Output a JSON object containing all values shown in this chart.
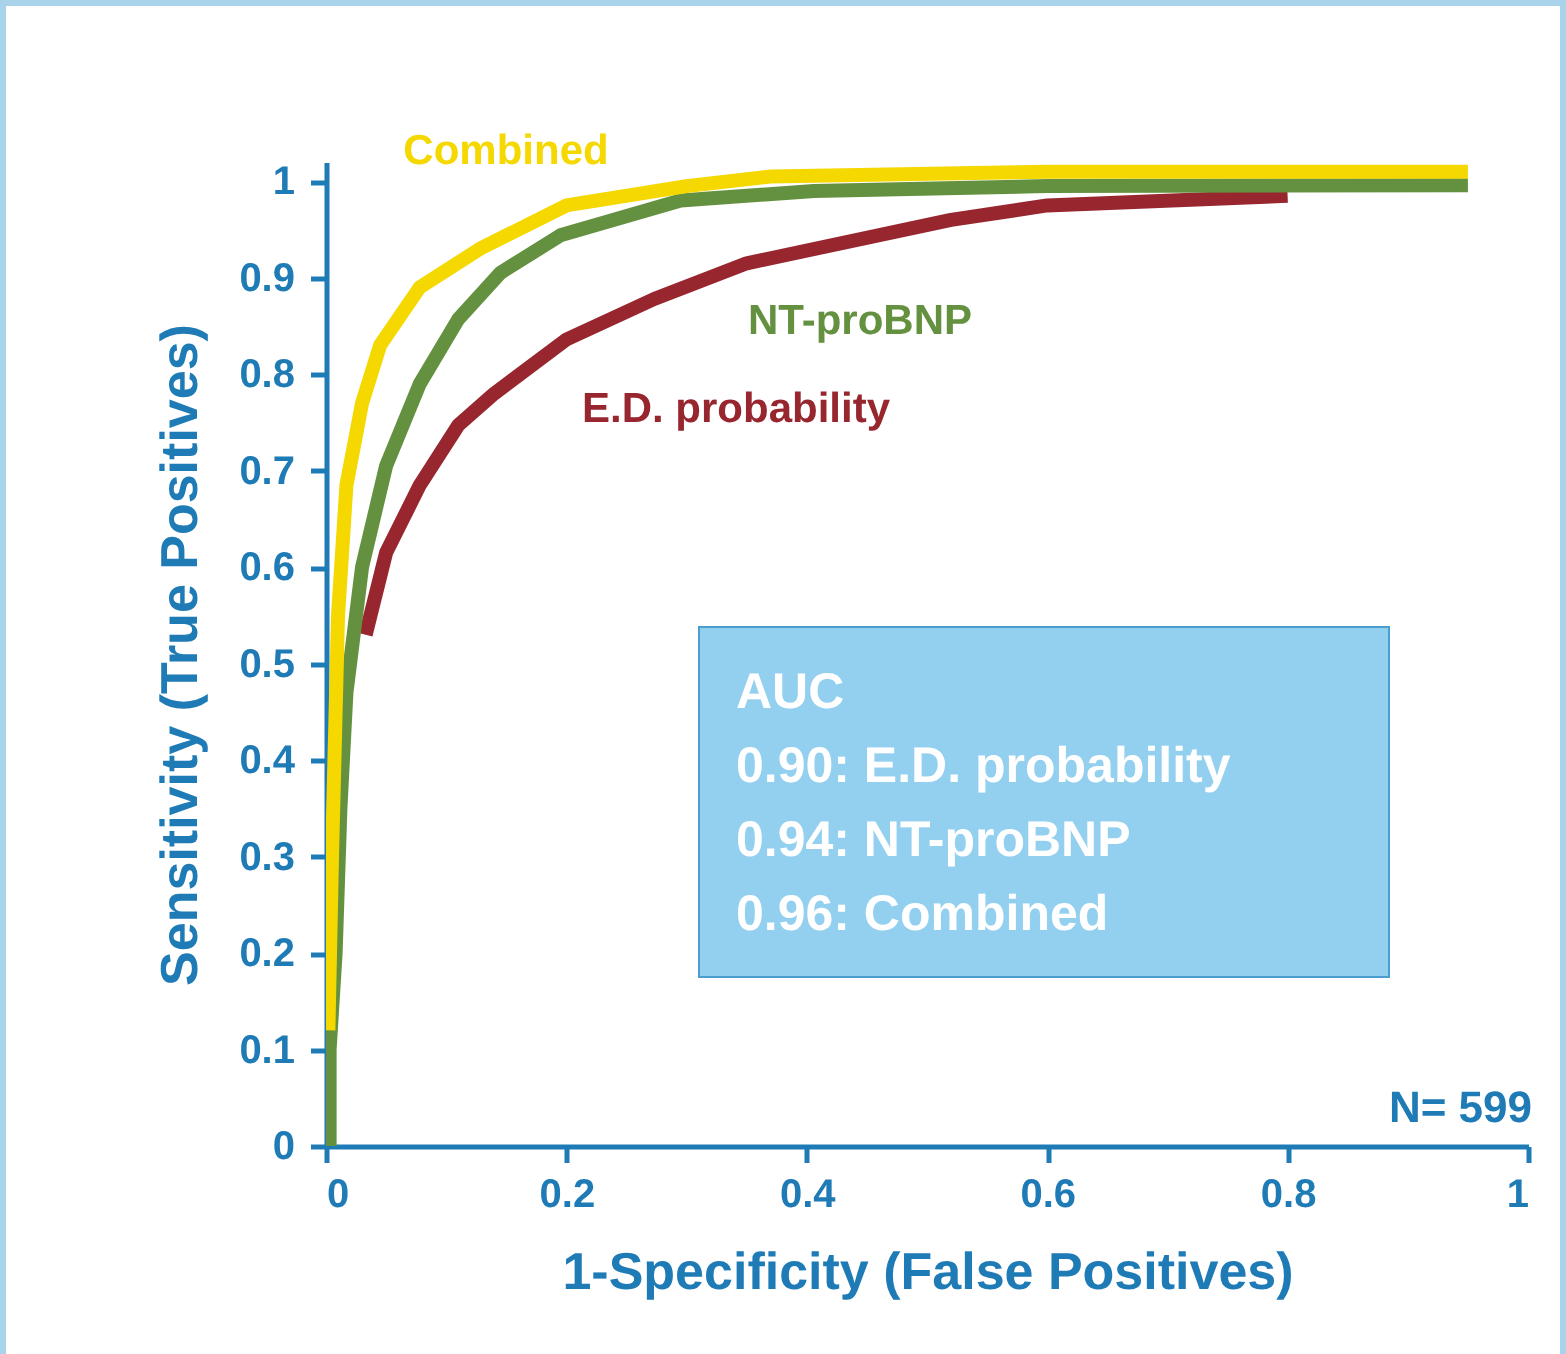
{
  "chart_data": {
    "type": "line",
    "xlabel": "1-Specificity (False Positives)",
    "ylabel": "Sensitivity (True Positives)",
    "xlim": [
      0,
      1
    ],
    "ylim": [
      0,
      1.02
    ],
    "xticks": [
      0,
      0.2,
      0.4,
      0.6,
      0.8,
      1
    ],
    "yticks": [
      0,
      0.1,
      0.2,
      0.3,
      0.4,
      0.5,
      0.6,
      0.7,
      0.8,
      0.9,
      1
    ],
    "grid": false,
    "legend": false,
    "marker": "none",
    "line_style": "solid",
    "annotations": [
      "AUC",
      "0.90: E.D. probability",
      "0.94: NT-proBNP",
      "0.96: Combined",
      "N= 599"
    ],
    "series": [
      {
        "name": "E.D. probability",
        "color": "#97262e",
        "x": [
          0.033,
          0.05,
          0.078,
          0.11,
          0.14,
          0.2,
          0.273,
          0.35,
          0.52,
          0.6,
          0.8
        ],
        "values": [
          0.53,
          0.615,
          0.685,
          0.747,
          0.78,
          0.836,
          0.878,
          0.915,
          0.96,
          0.975,
          0.985
        ]
      },
      {
        "name": "NT-proBNP",
        "color": "#64913f",
        "x": [
          0.003,
          0.003,
          0.008,
          0.012,
          0.017,
          0.03,
          0.05,
          0.078,
          0.11,
          0.145,
          0.195,
          0.295,
          0.406,
          0.6,
          0.95
        ],
        "values": [
          0,
          0.1,
          0.2,
          0.35,
          0.47,
          0.6,
          0.705,
          0.79,
          0.857,
          0.905,
          0.944,
          0.98,
          0.99,
          0.995,
          0.996
        ]
      },
      {
        "name": "Combined",
        "color": "#f5d800",
        "x": [
          0.002,
          0.005,
          0.008,
          0.01,
          0.017,
          0.03,
          0.045,
          0.078,
          0.128,
          0.2,
          0.3,
          0.37,
          0.6,
          0.95
        ],
        "values": [
          0.12,
          0.3,
          0.45,
          0.55,
          0.685,
          0.77,
          0.83,
          0.89,
          0.93,
          0.975,
          0.995,
          1.005,
          1.01,
          1.01
        ]
      }
    ]
  }
}
